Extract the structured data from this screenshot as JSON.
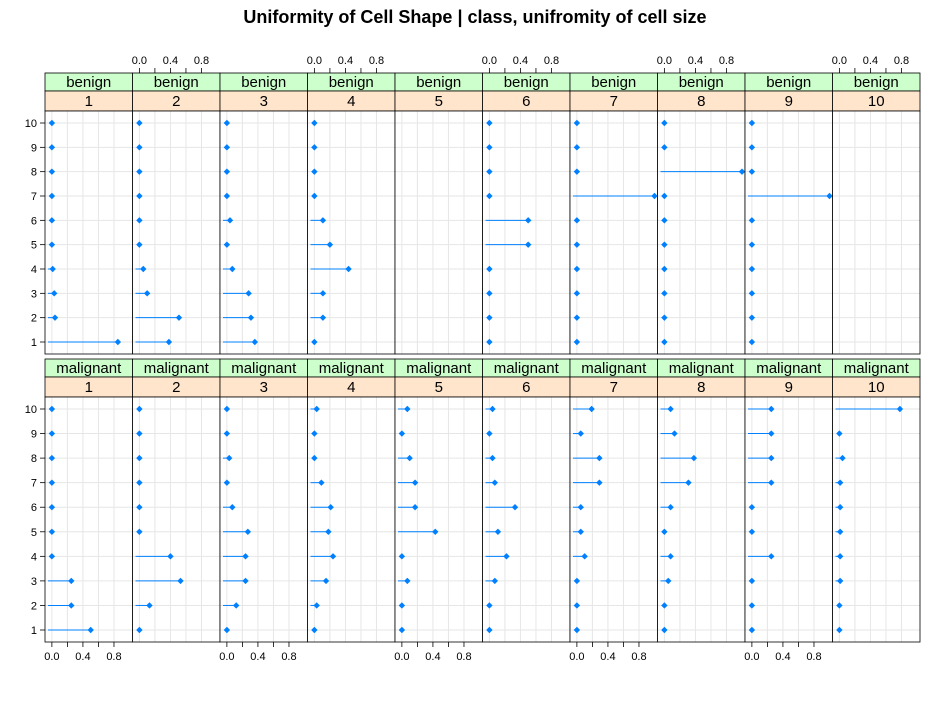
{
  "chart_data": {
    "type": "dotplot",
    "title": "Uniformity of Cell Shape | class, unifromity of cell size",
    "xlabel": "",
    "ylabel": "",
    "xlim": [
      -0.05,
      1.0
    ],
    "x_ticks": [
      0.0,
      0.2,
      0.4,
      0.6,
      0.8
    ],
    "x_tick_labels": [
      "0.0",
      "0.4",
      "0.8"
    ],
    "y_categories": [
      "1",
      "2",
      "3",
      "4",
      "5",
      "6",
      "7",
      "8",
      "9",
      "10"
    ],
    "grid": true,
    "colors": {
      "point": "#0080ff",
      "strip_top": "#ccffcc",
      "strip_bottom": "#ffe5cc",
      "grid": "#e6e6e6"
    },
    "rows": [
      {
        "label": "benign",
        "panels": [
          {
            "size": "1",
            "values": [
              0.85,
              0.04,
              0.03,
              0.01,
              0.0,
              0.0,
              0.0,
              0.0,
              0.0,
              0.0
            ]
          },
          {
            "size": "2",
            "values": [
              0.38,
              0.51,
              0.1,
              0.05,
              0.0,
              0.0,
              0.0,
              0.0,
              0.0,
              0.0
            ]
          },
          {
            "size": "3",
            "values": [
              0.36,
              0.31,
              0.28,
              0.07,
              0.0,
              0.04,
              0.0,
              0.0,
              0.0,
              0.0
            ]
          },
          {
            "size": "4",
            "values": [
              0.0,
              0.11,
              0.11,
              0.44,
              0.2,
              0.11,
              0.0,
              0.0,
              0.0,
              0.0
            ]
          },
          {
            "size": "5",
            "values": []
          },
          {
            "size": "6",
            "values": [
              0.0,
              0.0,
              0.0,
              0.0,
              0.5,
              0.5,
              0.0,
              0.0,
              0.0,
              0.0
            ]
          },
          {
            "size": "7",
            "values": [
              0.0,
              0.0,
              0.0,
              0.0,
              0.0,
              0.0,
              1.0,
              0.0,
              0.0,
              0.0
            ]
          },
          {
            "size": "8",
            "values": [
              0.0,
              0.0,
              0.0,
              0.0,
              0.0,
              0.0,
              0.0,
              1.0,
              0.0,
              0.0
            ]
          },
          {
            "size": "9",
            "values": [
              0.0,
              0.0,
              0.0,
              0.0,
              0.0,
              0.0,
              1.0,
              0.0,
              0.0,
              0.0
            ]
          },
          {
            "size": "10",
            "values": []
          }
        ]
      },
      {
        "label": "malignant",
        "panels": [
          {
            "size": "1",
            "values": [
              0.5,
              0.25,
              0.25,
              0.0,
              0.0,
              0.0,
              0.0,
              0.0,
              0.0,
              0.0
            ]
          },
          {
            "size": "2",
            "values": [
              0.0,
              0.13,
              0.53,
              0.4,
              0.0,
              0.0,
              0.0,
              0.0,
              0.0,
              0.0
            ]
          },
          {
            "size": "3",
            "values": [
              0.0,
              0.12,
              0.24,
              0.24,
              0.27,
              0.07,
              0.0,
              0.03,
              0.0,
              0.0
            ]
          },
          {
            "size": "4",
            "values": [
              0.0,
              0.03,
              0.15,
              0.24,
              0.18,
              0.21,
              0.09,
              0.0,
              0.0,
              0.03
            ]
          },
          {
            "size": "5",
            "values": [
              0.0,
              0.0,
              0.07,
              0.0,
              0.43,
              0.17,
              0.17,
              0.1,
              0.0,
              0.07
            ]
          },
          {
            "size": "6",
            "values": [
              0.0,
              0.0,
              0.07,
              0.22,
              0.11,
              0.33,
              0.07,
              0.04,
              0.0,
              0.04
            ]
          },
          {
            "size": "7",
            "values": [
              0.0,
              0.0,
              0.0,
              0.1,
              0.05,
              0.05,
              0.29,
              0.29,
              0.05,
              0.19
            ]
          },
          {
            "size": "8",
            "values": [
              0.0,
              0.0,
              0.05,
              0.08,
              0.0,
              0.08,
              0.31,
              0.38,
              0.13,
              0.08
            ]
          },
          {
            "size": "9",
            "values": [
              0.0,
              0.0,
              0.0,
              0.25,
              0.0,
              0.0,
              0.25,
              0.25,
              0.25,
              0.25
            ]
          },
          {
            "size": "10",
            "values": [
              0.0,
              0.0,
              0.01,
              0.01,
              0.01,
              0.01,
              0.01,
              0.04,
              0.0,
              0.78
            ]
          }
        ]
      }
    ]
  }
}
